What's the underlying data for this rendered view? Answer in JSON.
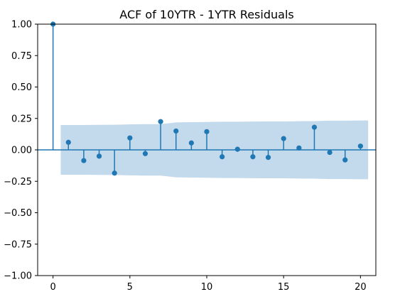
{
  "chart_data": {
    "type": "scatter",
    "subtype": "stem-acf",
    "title": "ACF of 10YTR - 1YTR Residuals",
    "xlabel": "",
    "ylabel": "",
    "xlim": [
      -1,
      21
    ],
    "ylim": [
      -1.0,
      1.0
    ],
    "xticks": [
      0,
      5,
      10,
      15,
      20
    ],
    "xtick_labels": [
      "0",
      "5",
      "10",
      "15",
      "20"
    ],
    "yticks": [
      1.0,
      0.75,
      0.5,
      0.25,
      0.0,
      -0.25,
      -0.5,
      -0.75,
      -1.0
    ],
    "ytick_labels": [
      "1.00",
      "0.75",
      "0.50",
      "0.25",
      "0.00",
      "−0.25",
      "−0.50",
      "−0.75",
      "−1.00"
    ],
    "grid": false,
    "legend": "none",
    "lags": [
      0,
      1,
      2,
      3,
      4,
      5,
      6,
      7,
      8,
      9,
      10,
      11,
      12,
      13,
      14,
      15,
      16,
      17,
      18,
      19,
      20
    ],
    "acf": [
      1.0,
      0.06,
      -0.085,
      -0.05,
      -0.185,
      0.095,
      -0.03,
      0.225,
      0.15,
      0.055,
      0.145,
      -0.055,
      0.005,
      -0.055,
      -0.06,
      0.09,
      0.015,
      0.18,
      -0.02,
      -0.08,
      0.03
    ],
    "confint_x": [
      0.5,
      1,
      2,
      3,
      4,
      5,
      6,
      7,
      8,
      9,
      10,
      11,
      12,
      13,
      14,
      15,
      16,
      17,
      18,
      19,
      20,
      20.5
    ],
    "confint_upper": [
      0.198,
      0.198,
      0.198,
      0.199,
      0.2,
      0.203,
      0.205,
      0.205,
      0.218,
      0.22,
      0.222,
      0.224,
      0.224,
      0.225,
      0.226,
      0.226,
      0.228,
      0.229,
      0.232,
      0.232,
      0.234,
      0.234
    ],
    "colors": {
      "stem": "#1f77b4",
      "band": "#c3d9ec",
      "axis": "#000000"
    }
  }
}
